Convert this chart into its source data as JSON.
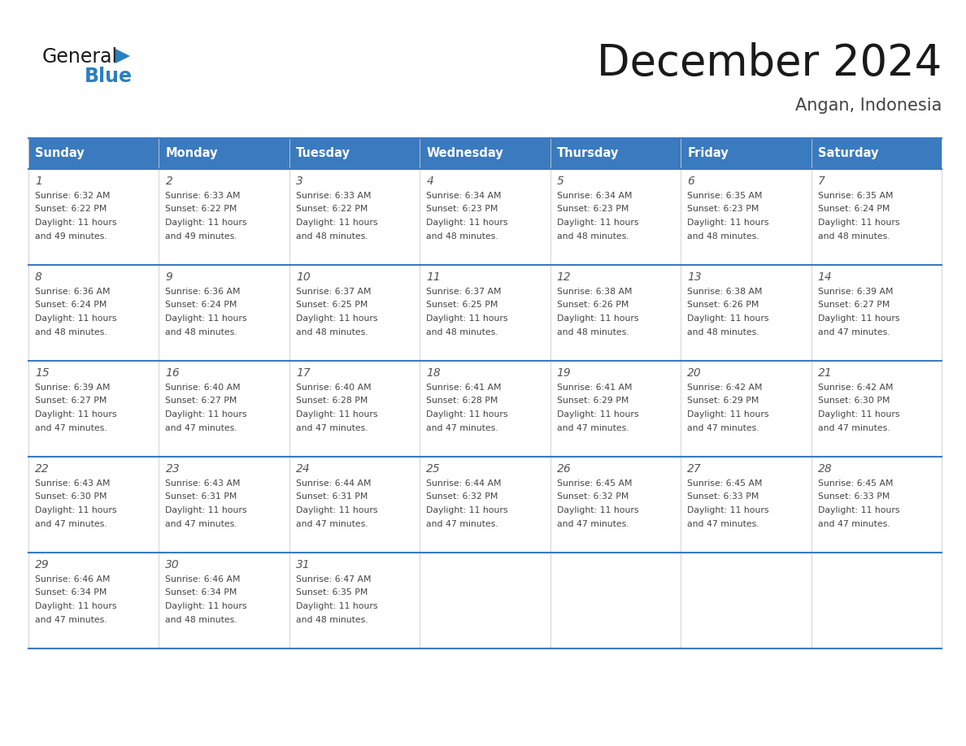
{
  "title": "December 2024",
  "subtitle": "Angan, Indonesia",
  "header_color": "#3a7abf",
  "header_text_color": "#ffffff",
  "border_color": "#3a7abf",
  "day_headers": [
    "Sunday",
    "Monday",
    "Tuesday",
    "Wednesday",
    "Thursday",
    "Friday",
    "Saturday"
  ],
  "title_color": "#1a1a1a",
  "subtitle_color": "#444444",
  "days": [
    {
      "day": 1,
      "col": 0,
      "row": 0,
      "sunrise": "6:32 AM",
      "sunset": "6:22 PM",
      "daylight_hours": 11,
      "daylight_minutes": 49
    },
    {
      "day": 2,
      "col": 1,
      "row": 0,
      "sunrise": "6:33 AM",
      "sunset": "6:22 PM",
      "daylight_hours": 11,
      "daylight_minutes": 49
    },
    {
      "day": 3,
      "col": 2,
      "row": 0,
      "sunrise": "6:33 AM",
      "sunset": "6:22 PM",
      "daylight_hours": 11,
      "daylight_minutes": 48
    },
    {
      "day": 4,
      "col": 3,
      "row": 0,
      "sunrise": "6:34 AM",
      "sunset": "6:23 PM",
      "daylight_hours": 11,
      "daylight_minutes": 48
    },
    {
      "day": 5,
      "col": 4,
      "row": 0,
      "sunrise": "6:34 AM",
      "sunset": "6:23 PM",
      "daylight_hours": 11,
      "daylight_minutes": 48
    },
    {
      "day": 6,
      "col": 5,
      "row": 0,
      "sunrise": "6:35 AM",
      "sunset": "6:23 PM",
      "daylight_hours": 11,
      "daylight_minutes": 48
    },
    {
      "day": 7,
      "col": 6,
      "row": 0,
      "sunrise": "6:35 AM",
      "sunset": "6:24 PM",
      "daylight_hours": 11,
      "daylight_minutes": 48
    },
    {
      "day": 8,
      "col": 0,
      "row": 1,
      "sunrise": "6:36 AM",
      "sunset": "6:24 PM",
      "daylight_hours": 11,
      "daylight_minutes": 48
    },
    {
      "day": 9,
      "col": 1,
      "row": 1,
      "sunrise": "6:36 AM",
      "sunset": "6:24 PM",
      "daylight_hours": 11,
      "daylight_minutes": 48
    },
    {
      "day": 10,
      "col": 2,
      "row": 1,
      "sunrise": "6:37 AM",
      "sunset": "6:25 PM",
      "daylight_hours": 11,
      "daylight_minutes": 48
    },
    {
      "day": 11,
      "col": 3,
      "row": 1,
      "sunrise": "6:37 AM",
      "sunset": "6:25 PM",
      "daylight_hours": 11,
      "daylight_minutes": 48
    },
    {
      "day": 12,
      "col": 4,
      "row": 1,
      "sunrise": "6:38 AM",
      "sunset": "6:26 PM",
      "daylight_hours": 11,
      "daylight_minutes": 48
    },
    {
      "day": 13,
      "col": 5,
      "row": 1,
      "sunrise": "6:38 AM",
      "sunset": "6:26 PM",
      "daylight_hours": 11,
      "daylight_minutes": 48
    },
    {
      "day": 14,
      "col": 6,
      "row": 1,
      "sunrise": "6:39 AM",
      "sunset": "6:27 PM",
      "daylight_hours": 11,
      "daylight_minutes": 47
    },
    {
      "day": 15,
      "col": 0,
      "row": 2,
      "sunrise": "6:39 AM",
      "sunset": "6:27 PM",
      "daylight_hours": 11,
      "daylight_minutes": 47
    },
    {
      "day": 16,
      "col": 1,
      "row": 2,
      "sunrise": "6:40 AM",
      "sunset": "6:27 PM",
      "daylight_hours": 11,
      "daylight_minutes": 47
    },
    {
      "day": 17,
      "col": 2,
      "row": 2,
      "sunrise": "6:40 AM",
      "sunset": "6:28 PM",
      "daylight_hours": 11,
      "daylight_minutes": 47
    },
    {
      "day": 18,
      "col": 3,
      "row": 2,
      "sunrise": "6:41 AM",
      "sunset": "6:28 PM",
      "daylight_hours": 11,
      "daylight_minutes": 47
    },
    {
      "day": 19,
      "col": 4,
      "row": 2,
      "sunrise": "6:41 AM",
      "sunset": "6:29 PM",
      "daylight_hours": 11,
      "daylight_minutes": 47
    },
    {
      "day": 20,
      "col": 5,
      "row": 2,
      "sunrise": "6:42 AM",
      "sunset": "6:29 PM",
      "daylight_hours": 11,
      "daylight_minutes": 47
    },
    {
      "day": 21,
      "col": 6,
      "row": 2,
      "sunrise": "6:42 AM",
      "sunset": "6:30 PM",
      "daylight_hours": 11,
      "daylight_minutes": 47
    },
    {
      "day": 22,
      "col": 0,
      "row": 3,
      "sunrise": "6:43 AM",
      "sunset": "6:30 PM",
      "daylight_hours": 11,
      "daylight_minutes": 47
    },
    {
      "day": 23,
      "col": 1,
      "row": 3,
      "sunrise": "6:43 AM",
      "sunset": "6:31 PM",
      "daylight_hours": 11,
      "daylight_minutes": 47
    },
    {
      "day": 24,
      "col": 2,
      "row": 3,
      "sunrise": "6:44 AM",
      "sunset": "6:31 PM",
      "daylight_hours": 11,
      "daylight_minutes": 47
    },
    {
      "day": 25,
      "col": 3,
      "row": 3,
      "sunrise": "6:44 AM",
      "sunset": "6:32 PM",
      "daylight_hours": 11,
      "daylight_minutes": 47
    },
    {
      "day": 26,
      "col": 4,
      "row": 3,
      "sunrise": "6:45 AM",
      "sunset": "6:32 PM",
      "daylight_hours": 11,
      "daylight_minutes": 47
    },
    {
      "day": 27,
      "col": 5,
      "row": 3,
      "sunrise": "6:45 AM",
      "sunset": "6:33 PM",
      "daylight_hours": 11,
      "daylight_minutes": 47
    },
    {
      "day": 28,
      "col": 6,
      "row": 3,
      "sunrise": "6:45 AM",
      "sunset": "6:33 PM",
      "daylight_hours": 11,
      "daylight_minutes": 47
    },
    {
      "day": 29,
      "col": 0,
      "row": 4,
      "sunrise": "6:46 AM",
      "sunset": "6:34 PM",
      "daylight_hours": 11,
      "daylight_minutes": 47
    },
    {
      "day": 30,
      "col": 1,
      "row": 4,
      "sunrise": "6:46 AM",
      "sunset": "6:34 PM",
      "daylight_hours": 11,
      "daylight_minutes": 48
    },
    {
      "day": 31,
      "col": 2,
      "row": 4,
      "sunrise": "6:47 AM",
      "sunset": "6:35 PM",
      "daylight_hours": 11,
      "daylight_minutes": 48
    }
  ],
  "logo_general_color": "#1a1a1a",
  "logo_blue_color": "#2a7fc1",
  "logo_triangle_color": "#2a7fc1"
}
